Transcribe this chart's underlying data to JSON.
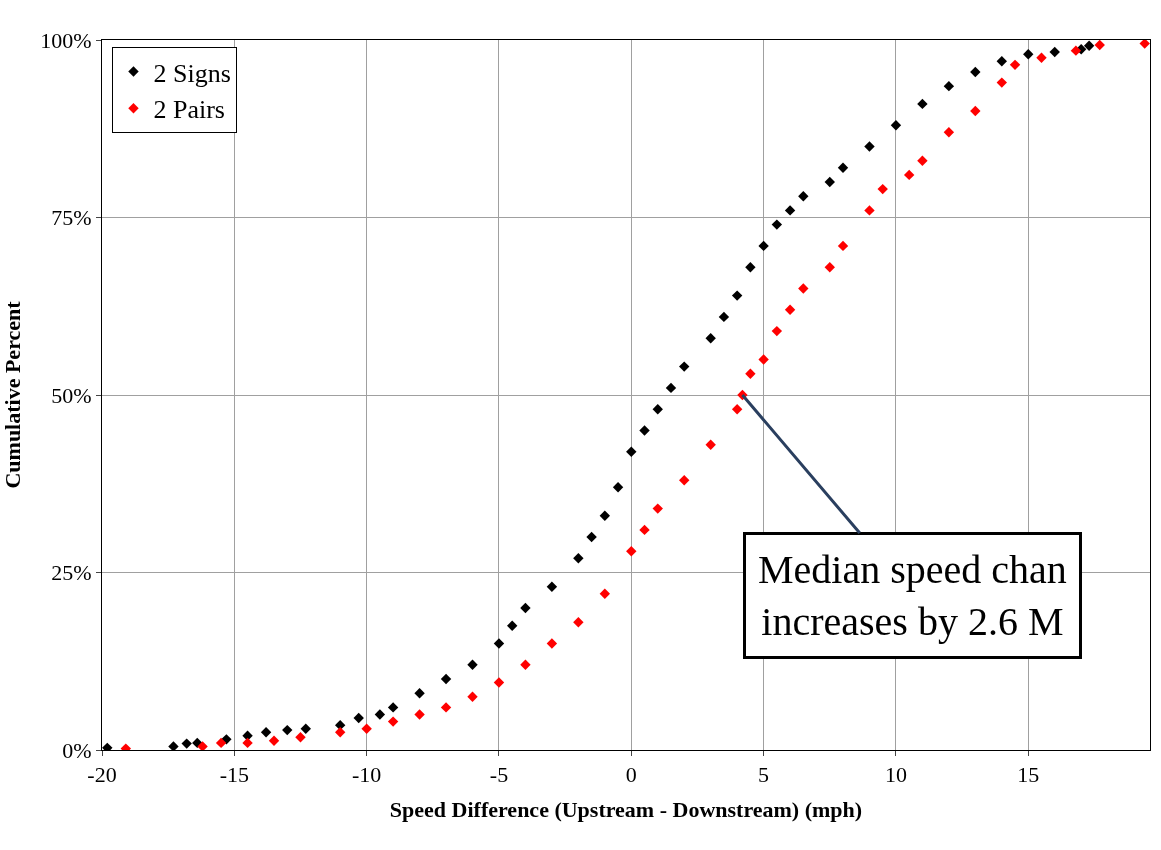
{
  "chart_data": {
    "type": "scatter",
    "xlabel": "Speed Difference (Upstream - Downstream) (mph)",
    "ylabel": "Cumulative Percent",
    "xlim": [
      -20,
      19.6
    ],
    "xticks": [
      -20,
      -15,
      -10,
      -5,
      0,
      5,
      10,
      15
    ],
    "ylim": [
      0,
      100
    ],
    "yticks": [
      {
        "value": 0,
        "label": "0%"
      },
      {
        "value": 25,
        "label": "25%"
      },
      {
        "value": 50,
        "label": "50%"
      },
      {
        "value": 75,
        "label": "75%"
      },
      {
        "value": 100,
        "label": "100%"
      }
    ],
    "grid": true,
    "legend": "top left",
    "marker": "diamond",
    "series": [
      {
        "name": "2 Signs",
        "color": "#000000",
        "x": [
          -19.8,
          -17.3,
          -16.8,
          -16.4,
          -15.3,
          -14.5,
          -13.8,
          -13,
          -12.3,
          -11,
          -10.3,
          -9.5,
          -9,
          -8,
          -7,
          -6,
          -5,
          -4.5,
          -4,
          -3,
          -2,
          -1.5,
          -1,
          -0.5,
          0,
          0.5,
          1,
          1.5,
          2,
          3,
          3.5,
          4,
          4.5,
          5,
          5.5,
          6,
          6.5,
          7.5,
          8,
          9,
          10,
          11,
          12,
          13,
          14,
          15,
          16,
          17,
          17.3
        ],
        "values": [
          0.3,
          0.5,
          0.9,
          1,
          1.5,
          2,
          2.5,
          2.8,
          3,
          3.5,
          4.5,
          5,
          6,
          8,
          10,
          12,
          15,
          17.5,
          20,
          23,
          27,
          30,
          33,
          37,
          42,
          45,
          48,
          51,
          54,
          58,
          61,
          64,
          68,
          71,
          74,
          76,
          78,
          80,
          82,
          85,
          88,
          91,
          93.5,
          95.5,
          97,
          98,
          98.3,
          98.7,
          99.2
        ]
      },
      {
        "name": "2 Pairs",
        "color": "#ff0000",
        "x": [
          -19.1,
          -16.2,
          -15.5,
          -14.5,
          -13.5,
          -12.5,
          -11,
          -10,
          -9,
          -8,
          -7,
          -6,
          -5,
          -4,
          -3,
          -2,
          -1,
          0,
          0.5,
          1,
          2,
          3,
          4,
          4.2,
          4.5,
          5,
          5.5,
          6,
          6.5,
          7.5,
          8,
          9,
          9.5,
          10.5,
          11,
          12,
          13,
          14,
          14.5,
          15.5,
          16.8,
          17.7,
          19.4
        ],
        "values": [
          0.2,
          0.5,
          1,
          1,
          1.3,
          1.8,
          2.5,
          3,
          4,
          5,
          6,
          7.5,
          9.5,
          12,
          15,
          18,
          22,
          28,
          31,
          34,
          38,
          43,
          48,
          50,
          53,
          55,
          59,
          62,
          65,
          68,
          71,
          76,
          79,
          81,
          83,
          87,
          90,
          94,
          96.5,
          97.5,
          98.5,
          99.3,
          99.5
        ]
      }
    ],
    "annotations": [
      {
        "text": "Median speed chan\nincreases by 2.6 M",
        "x": 4.2,
        "y": 50
      }
    ]
  }
}
